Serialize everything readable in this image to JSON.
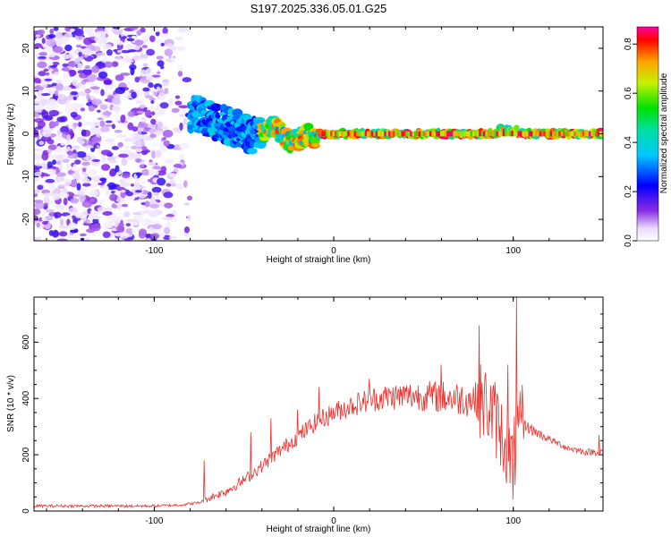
{
  "title": "S197.2025.336.05.01.G25",
  "chart_data": [
    {
      "type": "heatmap",
      "xlabel": "Height of straight line (km)",
      "ylabel": "Frequency (Hz)",
      "xlim": [
        -167,
        150
      ],
      "ylim": [
        -25,
        25
      ],
      "xticks": [
        -100,
        0,
        100
      ],
      "yticks": [
        -20,
        -10,
        0,
        10,
        20
      ],
      "colorbar": {
        "label": "Normalized spectral amplitude",
        "range": [
          0.0,
          0.87
        ],
        "ticks": [
          0.0,
          0.2,
          0.4,
          0.6,
          0.8
        ]
      },
      "features": [
        {
          "region": "noise",
          "x_range": [
            -167,
            -80
          ],
          "freq_range": [
            -25,
            25
          ],
          "amplitude": [
            0.02,
            0.2
          ]
        },
        {
          "region": "signal-onset",
          "x_range": [
            -80,
            -40
          ],
          "center_freq": 2,
          "freq_spread": 8,
          "amplitude": [
            0.2,
            0.4
          ]
        },
        {
          "region": "signal-descent",
          "x_range": [
            -40,
            -10
          ],
          "center_freq": -1,
          "freq_spread": 4,
          "amplitude": [
            0.3,
            0.8
          ]
        },
        {
          "region": "steady-signal",
          "x_range": [
            -10,
            150
          ],
          "center_freq": 0,
          "freq_spread": 1.5,
          "amplitude": [
            0.4,
            0.87
          ]
        }
      ]
    },
    {
      "type": "line",
      "xlabel": "Height of straight line (km)",
      "ylabel": "SNR (10 * v/v)",
      "xlim": [
        -167,
        150
      ],
      "ylim": [
        0,
        760
      ],
      "xticks": [
        -100,
        0,
        100
      ],
      "yticks": [
        0,
        200,
        400,
        600
      ],
      "series": [
        {
          "name": "SNR",
          "color": "#e8302c",
          "x": [
            -167,
            -140,
            -120,
            -100,
            -85,
            -75,
            -70,
            -60,
            -50,
            -40,
            -30,
            -20,
            -10,
            0,
            10,
            20,
            30,
            40,
            50,
            60,
            70,
            80,
            85,
            90,
            95,
            100,
            102,
            105,
            110,
            120,
            130,
            140,
            150
          ],
          "y": [
            18,
            18,
            18,
            18,
            22,
            30,
            45,
            70,
            110,
            160,
            215,
            265,
            315,
            350,
            375,
            395,
            405,
            410,
            410,
            405,
            400,
            395,
            380,
            330,
            250,
            180,
            250,
            310,
            290,
            255,
            225,
            210,
            210
          ],
          "spikes": [
            {
              "x": -72,
              "y": 180
            },
            {
              "x": -46,
              "y": 280
            },
            {
              "x": -35,
              "y": 330
            },
            {
              "x": -20,
              "y": 360
            },
            {
              "x": -8,
              "y": 440
            },
            {
              "x": 20,
              "y": 470
            },
            {
              "x": 60,
              "y": 520
            },
            {
              "x": 81,
              "y": 660
            },
            {
              "x": 97,
              "y": 520
            },
            {
              "x": 102,
              "y": 760
            },
            {
              "x": 100,
              "y": 40
            },
            {
              "x": 148,
              "y": 270
            }
          ]
        }
      ]
    }
  ]
}
